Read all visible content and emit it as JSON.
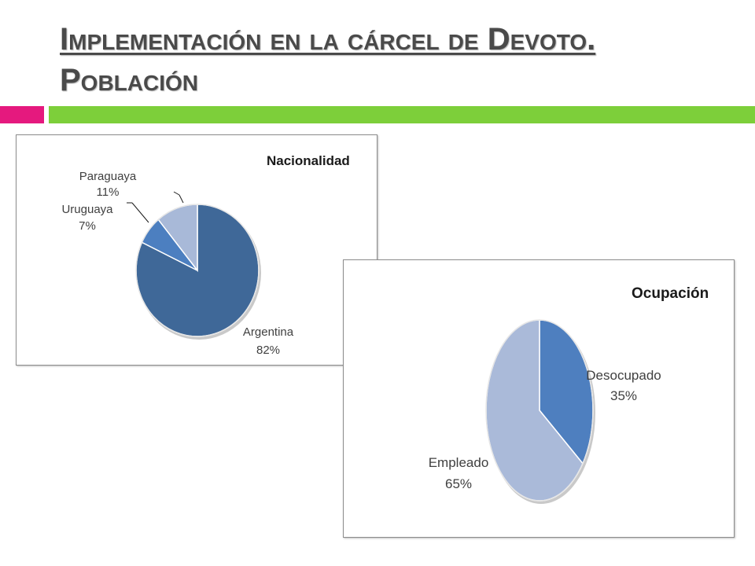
{
  "slide": {
    "title_line1": "Implementación en la cárcel de Devoto.",
    "title_line2": "Población"
  },
  "colors": {
    "accent_pink": "#e5197e",
    "accent_green": "#7dcf3a",
    "title_text": "#4a4a4a"
  },
  "chart_data": [
    {
      "type": "pie",
      "title": "Nacionalidad",
      "start_angle_deg": 0,
      "direction": "clockwise",
      "slices": [
        {
          "label": "Argentina",
          "value": 82,
          "value_label": "82%",
          "color": "#3f6898"
        },
        {
          "label": "Uruguaya",
          "value": 7,
          "value_label": "7%",
          "color": "#4c7fc0"
        },
        {
          "label": "Paraguaya",
          "value": 11,
          "value_label": "11%",
          "color": "#a8b9d8"
        }
      ],
      "legend": "none",
      "label_style": "outside with leader lines for Uruguaya and Paraguaya"
    },
    {
      "type": "pie",
      "title": "Ocupación",
      "start_angle_deg": 0,
      "direction": "clockwise",
      "slices": [
        {
          "label": "Desocupado",
          "value": 35,
          "value_label": "35%",
          "color": "#4e7fbf"
        },
        {
          "label": "Empleado",
          "value": 65,
          "value_label": "65%",
          "color": "#aabad9"
        }
      ],
      "legend": "none",
      "label_style": "outside"
    }
  ]
}
